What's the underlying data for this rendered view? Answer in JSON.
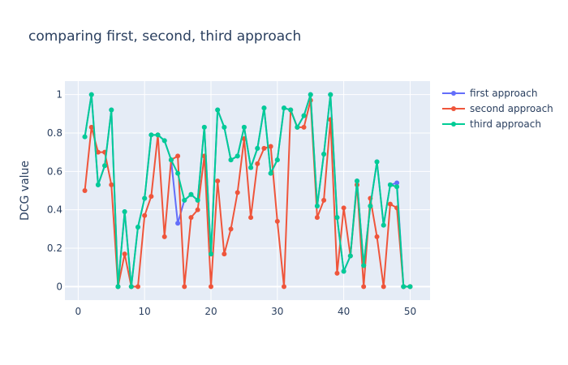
{
  "chart_data": {
    "type": "line",
    "title": "comparing first, second, third approach",
    "xlabel": "",
    "ylabel": "DCG value",
    "xlim": [
      -2,
      53
    ],
    "ylim": [
      -0.07,
      1.07
    ],
    "x_ticks": [
      0,
      10,
      20,
      30,
      40,
      50
    ],
    "y_ticks": [
      0,
      0.2,
      0.4,
      0.6,
      0.8,
      1
    ],
    "y_tick_labels": [
      "0",
      "0.2",
      "0.4",
      "0.6",
      "0.8",
      "1"
    ],
    "grid": true,
    "legend_position": "top-right",
    "markers": true,
    "x": [
      1,
      2,
      3,
      4,
      5,
      6,
      7,
      8,
      9,
      10,
      11,
      12,
      13,
      14,
      15,
      16,
      17,
      18,
      19,
      20,
      21,
      22,
      23,
      24,
      25,
      26,
      27,
      28,
      29,
      30,
      31,
      32,
      33,
      34,
      35,
      36,
      37,
      38,
      39,
      40,
      41,
      42,
      43,
      44,
      45,
      46,
      47,
      48,
      49,
      50
    ],
    "series": [
      {
        "name": "first approach",
        "color": "#636efa",
        "values": [
          0.78,
          1.0,
          0.53,
          0.63,
          0.92,
          0.0,
          0.39,
          0.0,
          0.31,
          0.46,
          0.79,
          0.79,
          0.76,
          0.66,
          0.33,
          0.45,
          0.48,
          0.45,
          0.83,
          0.17,
          0.92,
          0.83,
          0.66,
          0.68,
          0.83,
          0.62,
          0.72,
          0.93,
          0.59,
          0.66,
          0.93,
          0.92,
          0.83,
          0.89,
          1.0,
          0.42,
          0.69,
          1.0,
          0.36,
          0.08,
          0.16,
          0.55,
          0.11,
          0.42,
          0.65,
          0.32,
          0.53,
          0.54,
          0.0,
          0.0
        ]
      },
      {
        "name": "second approach",
        "color": "#ef553b",
        "values": [
          0.5,
          0.83,
          0.7,
          0.7,
          0.53,
          0.0,
          0.17,
          0.0,
          0.0,
          0.37,
          0.47,
          0.79,
          0.26,
          0.66,
          0.68,
          0.0,
          0.36,
          0.4,
          0.68,
          0.0,
          0.55,
          0.17,
          0.3,
          0.49,
          0.77,
          0.36,
          0.64,
          0.72,
          0.73,
          0.34,
          0.0,
          0.92,
          0.83,
          0.83,
          0.97,
          0.36,
          0.45,
          0.87,
          0.07,
          0.41,
          0.16,
          0.53,
          0.0,
          0.46,
          0.26,
          0.0,
          0.43,
          0.41,
          0.0,
          0.0
        ]
      },
      {
        "name": "third approach",
        "color": "#00cc96",
        "values": [
          0.78,
          1.0,
          0.53,
          0.63,
          0.92,
          0.0,
          0.39,
          0.0,
          0.31,
          0.46,
          0.79,
          0.79,
          0.76,
          0.66,
          0.59,
          0.45,
          0.48,
          0.45,
          0.83,
          0.17,
          0.92,
          0.83,
          0.66,
          0.68,
          0.83,
          0.62,
          0.72,
          0.93,
          0.59,
          0.66,
          0.93,
          0.92,
          0.83,
          0.89,
          1.0,
          0.42,
          0.69,
          1.0,
          0.36,
          0.08,
          0.16,
          0.55,
          0.11,
          0.42,
          0.65,
          0.32,
          0.53,
          0.52,
          0.0,
          0.0
        ]
      }
    ]
  }
}
